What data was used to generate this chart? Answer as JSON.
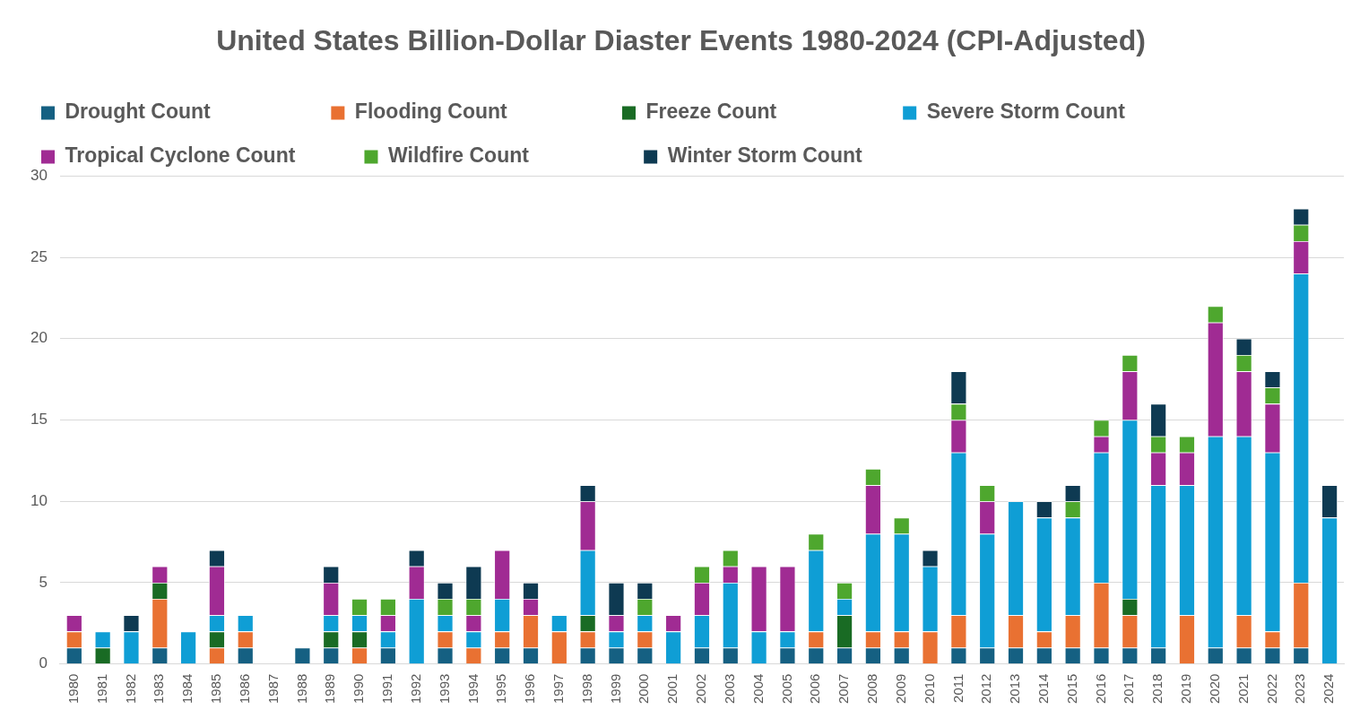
{
  "chart_data": {
    "type": "bar",
    "title": "United States Billion-Dollar Diaster Events 1980-2024 (CPI-Adjusted)",
    "categories": [
      "1980",
      "1981",
      "1982",
      "1983",
      "1984",
      "1985",
      "1986",
      "1987",
      "1988",
      "1989",
      "1990",
      "1991",
      "1992",
      "1993",
      "1994",
      "1995",
      "1996",
      "1997",
      "1998",
      "1999",
      "2000",
      "2001",
      "2002",
      "2003",
      "2004",
      "2005",
      "2006",
      "2007",
      "2008",
      "2009",
      "2010",
      "2011",
      "2012",
      "2013",
      "2014",
      "2015",
      "2016",
      "2017",
      "2018",
      "2019",
      "2020",
      "2021",
      "2022",
      "2023",
      "2024"
    ],
    "stacked": true,
    "grid": "y",
    "legend": "top",
    "ylim": [
      0,
      30
    ],
    "yticks": [
      0,
      5,
      10,
      15,
      20,
      25,
      30
    ],
    "series": [
      {
        "name": "Drought Count",
        "color": "#156082",
        "values": [
          1,
          0,
          0,
          1,
          0,
          0,
          1,
          0,
          1,
          1,
          0,
          1,
          0,
          1,
          0,
          1,
          1,
          0,
          1,
          1,
          1,
          0,
          1,
          1,
          0,
          1,
          1,
          1,
          1,
          1,
          0,
          1,
          1,
          1,
          1,
          1,
          1,
          1,
          1,
          0,
          1,
          1,
          1,
          1,
          0
        ]
      },
      {
        "name": "Flooding Count",
        "color": "#e97132",
        "values": [
          1,
          0,
          0,
          3,
          0,
          1,
          1,
          0,
          0,
          0,
          1,
          0,
          0,
          1,
          1,
          1,
          2,
          2,
          1,
          0,
          1,
          0,
          0,
          0,
          0,
          0,
          1,
          0,
          1,
          1,
          2,
          2,
          0,
          2,
          1,
          2,
          4,
          2,
          0,
          3,
          0,
          2,
          1,
          4,
          0
        ]
      },
      {
        "name": "Freeze Count",
        "color": "#196b24",
        "values": [
          0,
          1,
          0,
          1,
          0,
          1,
          0,
          0,
          0,
          1,
          1,
          0,
          0,
          0,
          0,
          0,
          0,
          0,
          1,
          0,
          0,
          0,
          0,
          0,
          0,
          0,
          0,
          2,
          0,
          0,
          0,
          0,
          0,
          0,
          0,
          0,
          0,
          1,
          0,
          0,
          0,
          0,
          0,
          0,
          0
        ]
      },
      {
        "name": "Severe Storm Count",
        "color": "#0f9ed5",
        "values": [
          0,
          1,
          2,
          0,
          2,
          1,
          1,
          0,
          0,
          1,
          1,
          1,
          4,
          1,
          1,
          2,
          0,
          1,
          4,
          1,
          1,
          2,
          2,
          4,
          2,
          1,
          5,
          1,
          6,
          6,
          4,
          10,
          7,
          7,
          7,
          6,
          8,
          11,
          10,
          8,
          13,
          11,
          11,
          19,
          9
        ]
      },
      {
        "name": "Tropical Cyclone Count",
        "color": "#a02b93",
        "values": [
          1,
          0,
          0,
          1,
          0,
          3,
          0,
          0,
          0,
          2,
          0,
          1,
          2,
          0,
          1,
          3,
          1,
          0,
          3,
          1,
          0,
          1,
          2,
          1,
          4,
          4,
          0,
          0,
          3,
          0,
          0,
          2,
          2,
          0,
          0,
          0,
          1,
          3,
          2,
          2,
          7,
          4,
          3,
          2,
          0
        ]
      },
      {
        "name": "Wildfire Count",
        "color": "#4ea72e",
        "values": [
          0,
          0,
          0,
          0,
          0,
          0,
          0,
          0,
          0,
          0,
          1,
          1,
          0,
          1,
          1,
          0,
          0,
          0,
          0,
          0,
          1,
          0,
          1,
          1,
          0,
          0,
          1,
          1,
          1,
          1,
          0,
          1,
          1,
          0,
          0,
          1,
          1,
          1,
          1,
          1,
          1,
          1,
          1,
          1,
          0
        ]
      },
      {
        "name": "Winter Storm Count",
        "color": "#0e3a52",
        "values": [
          0,
          0,
          1,
          0,
          0,
          1,
          0,
          0,
          0,
          1,
          0,
          0,
          1,
          1,
          2,
          0,
          1,
          0,
          1,
          2,
          1,
          0,
          0,
          0,
          0,
          0,
          0,
          0,
          0,
          0,
          1,
          2,
          0,
          0,
          1,
          1,
          0,
          0,
          2,
          0,
          0,
          1,
          1,
          1,
          2
        ]
      }
    ]
  }
}
